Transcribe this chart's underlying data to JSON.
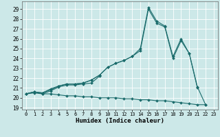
{
  "xlabel": "Humidex (Indice chaleur)",
  "bg_color": "#cce8e8",
  "grid_color": "#ffffff",
  "line_color": "#1a6b6b",
  "xlim": [
    -0.5,
    23.5
  ],
  "ylim": [
    18.8,
    29.8
  ],
  "xticks": [
    0,
    1,
    2,
    3,
    4,
    5,
    6,
    7,
    8,
    9,
    10,
    11,
    12,
    13,
    14,
    15,
    16,
    17,
    18,
    19,
    20,
    21,
    22,
    23
  ],
  "yticks": [
    19,
    20,
    21,
    22,
    23,
    24,
    25,
    26,
    27,
    28,
    29
  ],
  "x": [
    0,
    1,
    2,
    3,
    4,
    5,
    6,
    7,
    8,
    9,
    10,
    11,
    12,
    13,
    14,
    15,
    16,
    17,
    18,
    19,
    20,
    21,
    22,
    23
  ],
  "line_top": [
    20.4,
    20.6,
    20.5,
    20.9,
    21.2,
    21.4,
    21.4,
    21.5,
    21.8,
    22.3,
    23.1,
    23.5,
    23.8,
    24.2,
    25.0,
    29.2,
    27.8,
    27.3,
    24.2,
    26.0,
    24.5,
    21.1,
    19.3,
    null
  ],
  "line_mid": [
    20.4,
    20.6,
    20.5,
    20.8,
    21.2,
    21.4,
    21.4,
    21.5,
    21.8,
    22.3,
    23.1,
    23.5,
    23.8,
    24.2,
    24.8,
    29.0,
    27.6,
    27.2,
    24.0,
    25.8,
    24.5,
    21.0,
    null,
    null
  ],
  "line_low": [
    20.4,
    20.6,
    20.4,
    20.7,
    21.1,
    21.3,
    21.3,
    21.4,
    21.5,
    22.2,
    null,
    null,
    null,
    null,
    null,
    null,
    null,
    null,
    null,
    null,
    null,
    null,
    null,
    null
  ],
  "line_bot": [
    20.4,
    20.5,
    20.4,
    20.4,
    20.3,
    20.2,
    20.2,
    20.1,
    20.1,
    20.0,
    20.0,
    20.0,
    19.9,
    19.9,
    19.8,
    19.8,
    19.7,
    19.7,
    19.6,
    19.5,
    19.4,
    19.3,
    19.3,
    null
  ]
}
